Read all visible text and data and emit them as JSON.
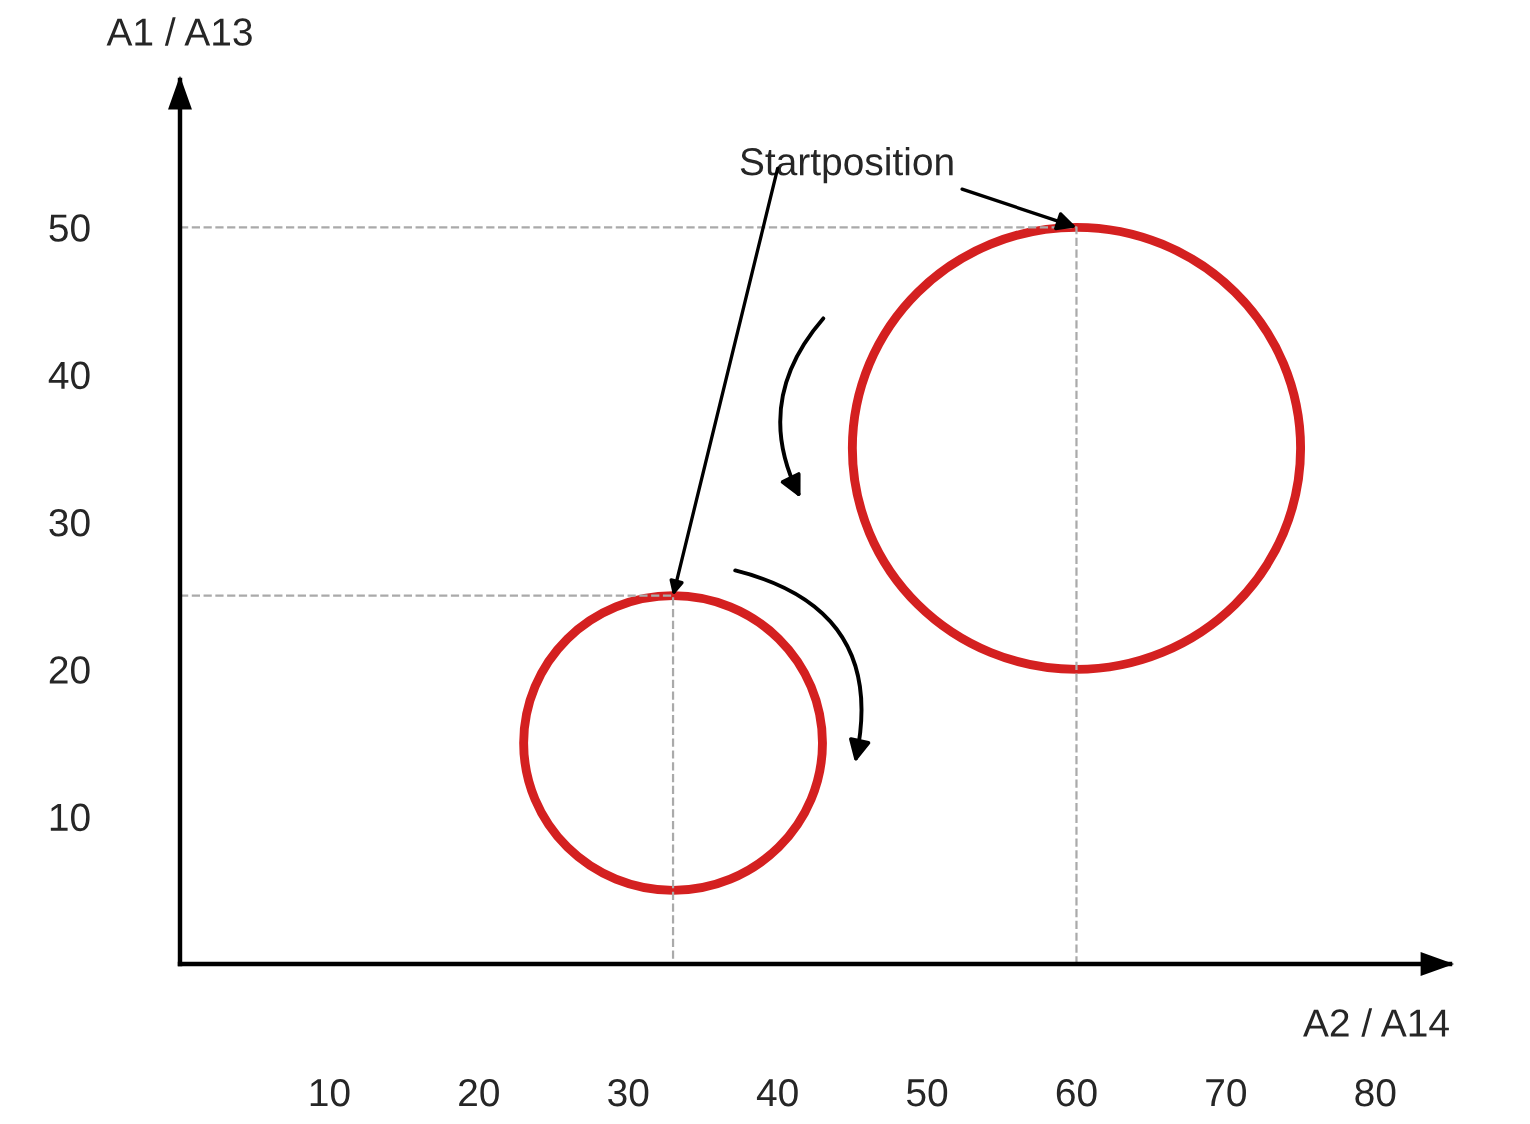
{
  "chart_data": {
    "type": "line",
    "xlabel": "A2 / A14",
    "ylabel": "A1 / A13",
    "xlim": [
      0,
      85
    ],
    "ylim": [
      0,
      60
    ],
    "xticks": [
      10,
      20,
      30,
      40,
      50,
      60,
      70,
      80
    ],
    "yticks": [
      10,
      20,
      30,
      40,
      50
    ],
    "grid": false,
    "legend": false,
    "marker": "none",
    "annotations": [
      {
        "text": "Startposition",
        "x": 60,
        "y": 50
      }
    ],
    "series": [
      {
        "color": "#aaaaaa",
        "line_style": "dashed",
        "x": [
          0,
          60,
          60
        ],
        "values": [
          50,
          50,
          0
        ]
      },
      {
        "color": "#aaaaaa",
        "line_style": "dashed",
        "x": [
          0,
          33,
          33
        ],
        "values": [
          25,
          25,
          0
        ]
      }
    ]
  }
}
